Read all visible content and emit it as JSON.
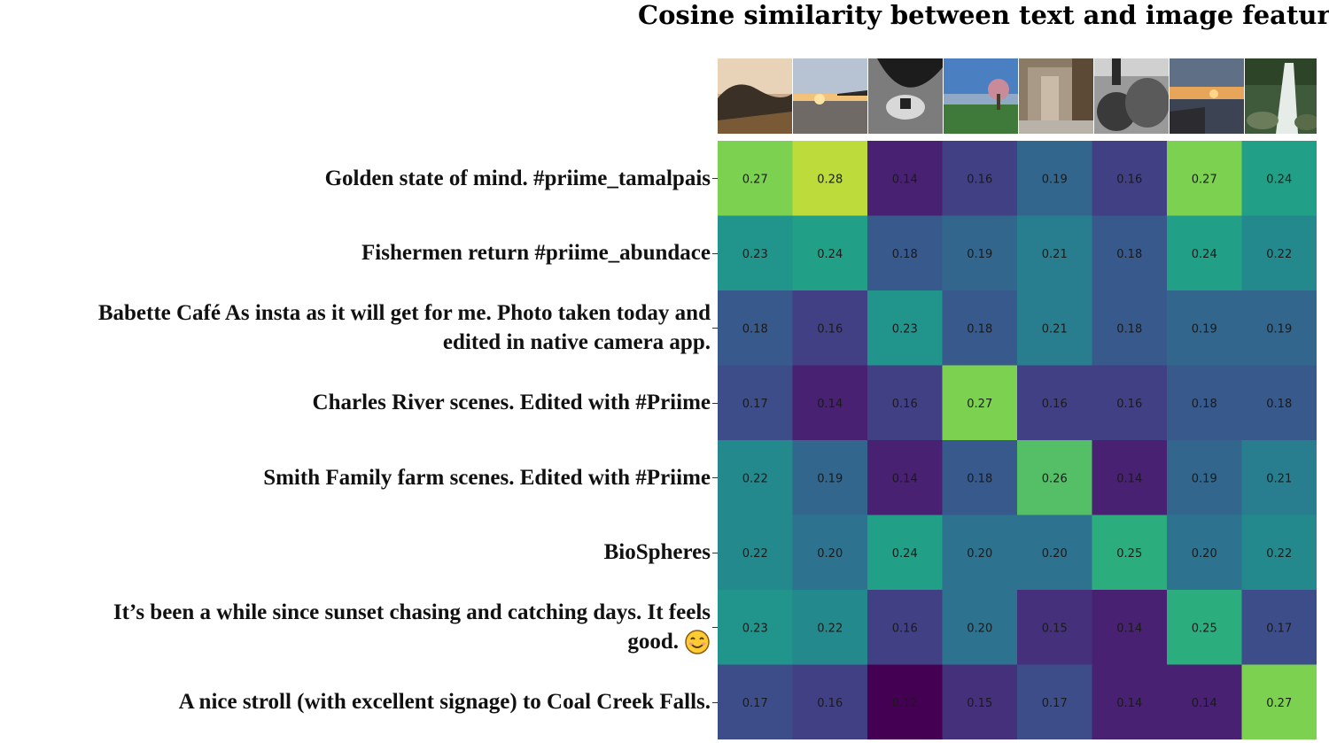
{
  "chart_data": {
    "type": "heatmap",
    "title": "Cosine similarity between text and image features",
    "rows": [
      "Golden state of mind. #priime_tamalpais",
      "Fishermen return #priime_abundace",
      "Babette Café As insta as it will get for me. Photo taken today and edited in native camera app.",
      "Charles River scenes. Edited with #Priime",
      "Smith Family farm scenes. Edited with #Priime",
      "BioSpheres",
      "It’s been a while since sunset chasing and catching days. It feels good. 😊",
      "A nice stroll (with excellent signage) to Coal Creek Falls."
    ],
    "columns": [
      "hills-at-dusk-photo",
      "beach-sunset-pier-photo",
      "bw-hallway-photo",
      "river-city-park-photo",
      "farm-barn-photo",
      "bw-dome-photo",
      "sunset-sea-photo",
      "waterfall-forest-photo"
    ],
    "values": [
      [
        0.27,
        0.28,
        0.14,
        0.16,
        0.19,
        0.16,
        0.27,
        0.24
      ],
      [
        0.23,
        0.24,
        0.18,
        0.19,
        0.21,
        0.18,
        0.24,
        0.22
      ],
      [
        0.18,
        0.16,
        0.23,
        0.18,
        0.21,
        0.18,
        0.19,
        0.19
      ],
      [
        0.17,
        0.14,
        0.16,
        0.27,
        0.16,
        0.16,
        0.18,
        0.18
      ],
      [
        0.22,
        0.19,
        0.14,
        0.18,
        0.26,
        0.14,
        0.19,
        0.21
      ],
      [
        0.22,
        0.2,
        0.24,
        0.2,
        0.2,
        0.25,
        0.2,
        0.22
      ],
      [
        0.23,
        0.22,
        0.16,
        0.2,
        0.15,
        0.14,
        0.25,
        0.17
      ],
      [
        0.17,
        0.16,
        0.12,
        0.15,
        0.17,
        0.14,
        0.14,
        0.27
      ]
    ],
    "colormap": "viridis",
    "vmin": 0.12,
    "vmax": 0.29,
    "grid": false
  },
  "labels": {
    "row_0": "Golden state of mind. #priime_tamalpais",
    "row_1": "Fishermen return #priime_abundace",
    "row_2a": "Babette Café As insta as it will get for me. Photo taken today and",
    "row_2b": "edited in native camera app.",
    "row_3": "Charles River scenes. Edited with #Priime",
    "row_4": "Smith Family farm scenes. Edited with #Priime",
    "row_5": "BioSpheres",
    "row_6a": "It’s been a while since sunset chasing and catching days. It feels",
    "row_6b": "good.",
    "row_7": "A nice stroll (with excellent signage) to Coal Creek Falls."
  }
}
